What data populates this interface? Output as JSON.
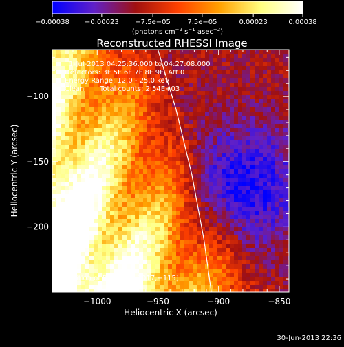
{
  "chart_data": {
    "type": "heatmap",
    "title": "Reconstructed RHESSI Image",
    "xlabel": "Heliocentric X (arcsec)",
    "ylabel": "Heliocentric Y (arcsec)",
    "xlim": [
      -1037,
      -842
    ],
    "ylim": [
      -250,
      -64
    ],
    "x_ticks": [
      -1000,
      -950,
      -900,
      -850
    ],
    "x_tick_labels": [
      "−1000",
      "−950",
      "−900",
      "−850"
    ],
    "y_ticks": [
      -100,
      -150,
      -200
    ],
    "y_tick_labels": [
      "−100",
      "−150",
      "−200"
    ],
    "colorbar": {
      "range": [
        -0.00038,
        0.00038
      ],
      "ticks": [
        -0.00038,
        -0.00023,
        -7.5e-05,
        7.5e-05,
        0.00023,
        0.00038
      ],
      "tick_labels": [
        "−0.00038",
        "−0.00023",
        "−7.5e−05",
        "7.5e−05",
        "0.00023",
        "0.00038"
      ],
      "units_prefix": "(photons cm",
      "units_exp1": "−2",
      "units_mid": " s",
      "units_exp2": "−1",
      "units_mid2": " asec",
      "units_exp3": "−2",
      "units_suffix": ")",
      "colors": [
        "#0000ff",
        "#6020c8",
        "#a01010",
        "#ff4000",
        "#ffa000",
        "#ffff80",
        "#ffffff"
      ]
    },
    "annotations": {
      "time_range": "1-Jul-2013 04:25:36.000 to 04:27:08.000",
      "detectors": "Detectors: 3F 5F 6F 7F 8F 9F, Att 0",
      "energy": "Energy Range: 12.0 - 25.0 keV",
      "algorithm": "Clean",
      "counts": "Total counts: 2.54E+03",
      "peak": "Position of Peak = [−1017,−115]"
    },
    "limb_curve": [
      [
        -950,
        -64
      ],
      [
        -935,
        -110
      ],
      [
        -922,
        -160
      ],
      [
        -912,
        -210
      ],
      [
        -906,
        -250
      ]
    ],
    "peak_position": [
      -1017,
      -115
    ]
  },
  "footer": {
    "timestamp": "30-Jun-2013 22:36"
  }
}
